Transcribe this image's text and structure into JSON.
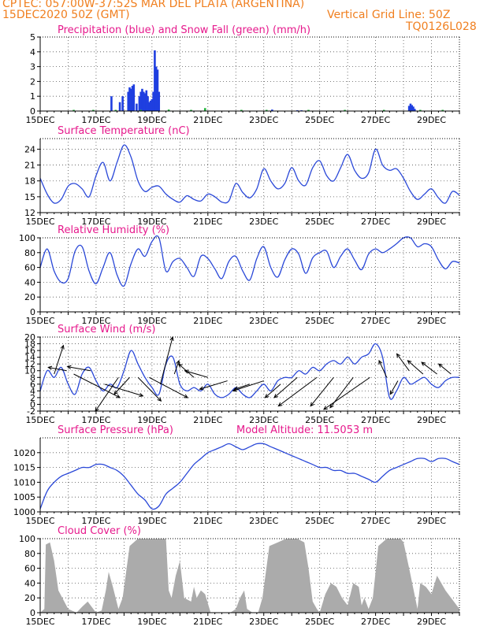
{
  "header": {
    "line1_left": "CPTEC:  057:00W-37:52S  MAR DEL PLATA (ARGENTINA)",
    "line2_left": "15DEC2020 50Z (GMT)",
    "line2_right": "Vertical Grid Line: 50Z",
    "line3_right": "TQ0126L028",
    "orange": "#f07f1f",
    "pink": "#e6198c"
  },
  "colors": {
    "precip": "#1f3fe0",
    "snow": "#21b33b",
    "line": "#2a48d8",
    "cloud": "#ababab",
    "arrow": "#000000"
  },
  "chart_data": [
    {
      "id": "precip",
      "type": "bar",
      "title": "Precipitation (blue) and Snow Fall (green) (mm/h)",
      "ylim": [
        0,
        5
      ],
      "yticks": [
        0,
        1,
        2,
        3,
        4,
        5
      ],
      "xlim": [
        15,
        30
      ],
      "xticks": [
        "15DEC",
        "17DEC",
        "19DEC",
        "21DEC",
        "23DEC",
        "25DEC",
        "27DEC",
        "29DEC"
      ],
      "series": [
        {
          "name": "Precipitation",
          "x": [
            17.55,
            17.85,
            17.95,
            18.15,
            18.2,
            18.25,
            18.3,
            18.35,
            18.45,
            18.55,
            18.6,
            18.65,
            18.7,
            18.75,
            18.8,
            18.85,
            18.9,
            18.95,
            19.0,
            19.05,
            19.1,
            19.15,
            19.2,
            19.25,
            23.3,
            24.2,
            24.35,
            28.2,
            28.25,
            28.3,
            28.35,
            28.4
          ],
          "values": [
            1.0,
            0.6,
            1.0,
            1.3,
            1.6,
            1.5,
            1.7,
            1.8,
            0.5,
            1.0,
            1.3,
            1.5,
            1.3,
            1.2,
            1.4,
            1.0,
            0.6,
            0.7,
            0.8,
            1.3,
            4.1,
            3.0,
            2.8,
            1.3,
            0.1,
            0.05,
            0.05,
            0.35,
            0.5,
            0.4,
            0.3,
            0.15
          ]
        },
        {
          "name": "Snow Fall",
          "x": [
            16.2,
            16.9,
            17.7,
            18.6,
            19.6,
            20.4,
            20.9,
            22.2,
            23.1,
            24.6,
            25.9,
            27.3,
            28.6,
            29.4
          ],
          "values": [
            0.05,
            0.05,
            0.05,
            0.05,
            0.1,
            0.05,
            0.2,
            0.05,
            0.05,
            0.05,
            0.05,
            0.05,
            0.05,
            0.05
          ]
        }
      ]
    },
    {
      "id": "temp",
      "type": "line",
      "title": "Surface Temperature (nC)",
      "ylim": [
        12,
        26
      ],
      "yticks": [
        12,
        15,
        18,
        21,
        24
      ],
      "xlim": [
        15,
        30
      ],
      "xticks": [
        "15DEC",
        "17DEC",
        "19DEC",
        "21DEC",
        "23DEC",
        "25DEC",
        "27DEC",
        "29DEC"
      ],
      "series": [
        {
          "name": "",
          "x": [
            15.0,
            15.25,
            15.5,
            15.75,
            16.0,
            16.25,
            16.5,
            16.75,
            17.0,
            17.25,
            17.5,
            17.75,
            18.0,
            18.25,
            18.5,
            18.75,
            19.0,
            19.25,
            19.5,
            19.75,
            20.0,
            20.25,
            20.5,
            20.75,
            21.0,
            21.25,
            21.5,
            21.75,
            22.0,
            22.25,
            22.5,
            22.75,
            23.0,
            23.25,
            23.5,
            23.75,
            24.0,
            24.25,
            24.5,
            24.75,
            25.0,
            25.25,
            25.5,
            25.75,
            26.0,
            26.25,
            26.5,
            26.75,
            27.0,
            27.25,
            27.5,
            27.75,
            28.0,
            28.25,
            28.5,
            28.75,
            29.0,
            29.25,
            29.5,
            29.75,
            30.0
          ],
          "values": [
            18.5,
            15.5,
            13.8,
            14.5,
            17.0,
            17.5,
            16.5,
            15.0,
            19.0,
            21.5,
            18.0,
            21.5,
            24.8,
            22.5,
            18.0,
            16.0,
            16.8,
            17.0,
            15.5,
            14.5,
            14.0,
            15.2,
            14.5,
            14.2,
            15.5,
            15.0,
            14.0,
            14.2,
            17.5,
            15.8,
            14.8,
            16.5,
            20.3,
            18.0,
            16.5,
            17.5,
            20.5,
            18.0,
            17.2,
            20.5,
            21.8,
            19.0,
            18.0,
            20.5,
            23.0,
            20.0,
            18.5,
            19.5,
            24.0,
            21.0,
            20.0,
            20.3,
            18.5,
            16.0,
            14.5,
            15.5,
            16.5,
            14.8,
            13.8,
            16.0,
            15.3
          ]
        }
      ]
    },
    {
      "id": "rh",
      "type": "line",
      "title": "Relative Humidity (%)",
      "ylim": [
        0,
        100
      ],
      "yticks": [
        0,
        20,
        40,
        60,
        80,
        100
      ],
      "xlim": [
        15,
        30
      ],
      "xticks": [
        "15DEC",
        "17DEC",
        "19DEC",
        "21DEC",
        "23DEC",
        "25DEC",
        "27DEC",
        "29DEC"
      ],
      "series": [
        {
          "name": "",
          "x": [
            15.0,
            15.25,
            15.5,
            15.75,
            16.0,
            16.25,
            16.5,
            16.75,
            17.0,
            17.25,
            17.5,
            17.75,
            18.0,
            18.25,
            18.5,
            18.75,
            19.0,
            19.25,
            19.5,
            19.75,
            20.0,
            20.25,
            20.5,
            20.75,
            21.0,
            21.25,
            21.5,
            21.75,
            22.0,
            22.25,
            22.5,
            22.75,
            23.0,
            23.25,
            23.5,
            23.75,
            24.0,
            24.25,
            24.5,
            24.75,
            25.0,
            25.25,
            25.5,
            25.75,
            26.0,
            26.25,
            26.5,
            26.75,
            27.0,
            27.25,
            27.5,
            27.75,
            28.0,
            28.25,
            28.5,
            28.75,
            29.0,
            29.25,
            29.5,
            29.75,
            30.0
          ],
          "values": [
            60,
            85,
            55,
            40,
            45,
            82,
            88,
            55,
            38,
            60,
            80,
            50,
            35,
            65,
            85,
            75,
            95,
            100,
            55,
            68,
            72,
            60,
            48,
            75,
            72,
            58,
            45,
            68,
            75,
            55,
            43,
            72,
            88,
            60,
            47,
            70,
            85,
            78,
            52,
            73,
            80,
            82,
            60,
            75,
            85,
            70,
            57,
            78,
            85,
            80,
            85,
            92,
            100,
            100,
            88,
            92,
            88,
            70,
            58,
            68,
            66
          ]
        }
      ]
    },
    {
      "id": "wind",
      "type": "line",
      "title": "Surface Wind (m/s)",
      "ylim": [
        -2,
        20
      ],
      "yticks": [
        -2,
        0,
        2,
        4,
        6,
        8,
        10,
        12,
        14,
        16,
        18,
        20
      ],
      "xlim": [
        15,
        30
      ],
      "xticks": [
        "15DEC",
        "17DEC",
        "19DEC",
        "21DEC",
        "23DEC",
        "25DEC",
        "27DEC",
        "29DEC"
      ],
      "series": [
        {
          "name": "",
          "x": [
            15.0,
            15.25,
            15.5,
            15.75,
            16.0,
            16.25,
            16.5,
            16.75,
            17.0,
            17.25,
            17.5,
            17.75,
            18.0,
            18.25,
            18.5,
            18.75,
            19.0,
            19.25,
            19.5,
            19.75,
            20.0,
            20.25,
            20.5,
            20.75,
            21.0,
            21.25,
            21.5,
            21.75,
            22.0,
            22.25,
            22.5,
            22.75,
            23.0,
            23.25,
            23.5,
            23.75,
            24.0,
            24.25,
            24.5,
            24.75,
            25.0,
            25.25,
            25.5,
            25.75,
            26.0,
            26.25,
            26.5,
            26.75,
            27.0,
            27.25,
            27.5,
            27.75,
            28.0,
            28.25,
            28.5,
            28.75,
            29.0,
            29.25,
            29.5,
            29.75,
            30.0
          ],
          "values": [
            4,
            10,
            8,
            11,
            6,
            3,
            9,
            11,
            7,
            4,
            6,
            5,
            10,
            16,
            12,
            8,
            5,
            3,
            12,
            14,
            6,
            4,
            5,
            4,
            6,
            3,
            2,
            3,
            5,
            3,
            2,
            4,
            6,
            4,
            7,
            8,
            8,
            10,
            9,
            11,
            10,
            12,
            13,
            12,
            14,
            12,
            14,
            15,
            18,
            14,
            2,
            4,
            8,
            6,
            7,
            8,
            6,
            5,
            7,
            8,
            8
          ]
        }
      ],
      "arrows": [
        {
          "x": 15.5,
          "y": 9,
          "u": 0.6,
          "v": 8.5
        },
        {
          "x": 15.95,
          "y": 10,
          "u": -1.2,
          "v": 1.0
        },
        {
          "x": 16.2,
          "y": 9,
          "u": 3.0,
          "v": -7.0
        },
        {
          "x": 16.8,
          "y": 10,
          "u": -1.5,
          "v": 1.2
        },
        {
          "x": 17.3,
          "y": 6,
          "u": 2.5,
          "v": -3.5
        },
        {
          "x": 17.8,
          "y": 8,
          "u": -1.5,
          "v": -10.0
        },
        {
          "x": 18.2,
          "y": 8,
          "u": -1.0,
          "v": -5.0
        },
        {
          "x": 18.5,
          "y": 8,
          "u": 1.5,
          "v": -7.0
        },
        {
          "x": 18.9,
          "y": 8,
          "u": 2.5,
          "v": -6.0
        },
        {
          "x": 19.3,
          "y": 6,
          "u": 0.8,
          "v": 14.0
        },
        {
          "x": 19.8,
          "y": 9,
          "u": 0.3,
          "v": 4.0
        },
        {
          "x": 20.5,
          "y": 8,
          "u": -1.0,
          "v": 4.0
        },
        {
          "x": 21.0,
          "y": 8,
          "u": -1.5,
          "v": 2.0
        },
        {
          "x": 21.7,
          "y": 7,
          "u": -1.8,
          "v": -2.5
        },
        {
          "x": 22.5,
          "y": 6,
          "u": -1.0,
          "v": -1.5
        },
        {
          "x": 23.0,
          "y": 7,
          "u": -2.0,
          "v": -3.0
        },
        {
          "x": 23.6,
          "y": 6,
          "u": -1.0,
          "v": -4.0
        },
        {
          "x": 24.2,
          "y": 8,
          "u": -1.5,
          "v": -6.0
        },
        {
          "x": 24.9,
          "y": 8,
          "u": -2.5,
          "v": -8.5
        },
        {
          "x": 25.5,
          "y": 8,
          "u": -1.5,
          "v": -8.5
        },
        {
          "x": 26.2,
          "y": 8,
          "u": -1.5,
          "v": -9.0
        },
        {
          "x": 26.8,
          "y": 8,
          "u": -3.0,
          "v": -9.5
        },
        {
          "x": 27.4,
          "y": 8,
          "u": -0.5,
          "v": 5.0
        },
        {
          "x": 27.8,
          "y": 7,
          "u": -0.5,
          "v": -4.0
        },
        {
          "x": 28.2,
          "y": 10,
          "u": -0.8,
          "v": 5.0
        },
        {
          "x": 28.7,
          "y": 9,
          "u": -1.0,
          "v": 4.0
        },
        {
          "x": 29.2,
          "y": 9,
          "u": -1.0,
          "v": 3.5
        },
        {
          "x": 29.7,
          "y": 9,
          "u": -0.8,
          "v": 3.0
        }
      ]
    },
    {
      "id": "pressure",
      "type": "line",
      "title": "Surface Pressure (hPa)",
      "annotation": "Model Altitude: 11.5053 m",
      "ylim": [
        1000,
        1025
      ],
      "yticks": [
        1000,
        1005,
        1010,
        1015,
        1020
      ],
      "xlim": [
        15,
        30
      ],
      "xticks": [
        "15DEC",
        "17DEC",
        "19DEC",
        "21DEC",
        "23DEC",
        "25DEC",
        "27DEC",
        "29DEC"
      ],
      "series": [
        {
          "name": "",
          "x": [
            15.0,
            15.25,
            15.5,
            15.75,
            16.0,
            16.25,
            16.5,
            16.75,
            17.0,
            17.25,
            17.5,
            17.75,
            18.0,
            18.25,
            18.5,
            18.75,
            19.0,
            19.25,
            19.5,
            19.75,
            20.0,
            20.25,
            20.5,
            20.75,
            21.0,
            21.25,
            21.5,
            21.75,
            22.0,
            22.25,
            22.5,
            22.75,
            23.0,
            23.25,
            23.5,
            23.75,
            24.0,
            24.25,
            24.5,
            24.75,
            25.0,
            25.25,
            25.5,
            25.75,
            26.0,
            26.25,
            26.5,
            26.75,
            27.0,
            27.25,
            27.5,
            27.75,
            28.0,
            28.25,
            28.5,
            28.75,
            29.0,
            29.25,
            29.5,
            29.75,
            30.0
          ],
          "values": [
            1001,
            1007,
            1010,
            1012,
            1013,
            1014,
            1015,
            1015,
            1016,
            1016,
            1015,
            1014,
            1012,
            1009,
            1006,
            1004,
            1001,
            1002,
            1006,
            1008,
            1010,
            1013,
            1016,
            1018,
            1020,
            1021,
            1022,
            1023,
            1022,
            1021,
            1022,
            1023,
            1023,
            1022,
            1021,
            1020,
            1019,
            1018,
            1017,
            1016,
            1015,
            1015,
            1014,
            1014,
            1013,
            1013,
            1012,
            1011,
            1010,
            1012,
            1014,
            1015,
            1016,
            1017,
            1018,
            1018,
            1017,
            1018,
            1018,
            1017,
            1016
          ]
        }
      ]
    },
    {
      "id": "cloud",
      "type": "area",
      "title": "Cloud Cover (%)",
      "ylim": [
        0,
        100
      ],
      "yticks": [
        0,
        20,
        40,
        60,
        80,
        100
      ],
      "xlim": [
        15,
        30
      ],
      "xticks": [
        "15DEC",
        "17DEC",
        "19DEC",
        "21DEC",
        "23DEC",
        "25DEC",
        "27DEC",
        "29DEC"
      ],
      "series": [
        {
          "name": "",
          "x": [
            15.0,
            15.15,
            15.2,
            15.35,
            15.5,
            15.65,
            16.0,
            16.3,
            16.5,
            16.7,
            17.0,
            17.2,
            17.35,
            17.45,
            17.6,
            17.8,
            17.95,
            18.2,
            18.5,
            18.8,
            19.0,
            19.2,
            19.5,
            19.6,
            19.7,
            19.85,
            20.0,
            20.15,
            20.4,
            20.5,
            20.6,
            20.75,
            20.9,
            21.1,
            21.4,
            21.6,
            21.8,
            22.0,
            22.15,
            22.3,
            22.4,
            22.6,
            22.8,
            22.95,
            23.2,
            23.5,
            23.8,
            24.0,
            24.2,
            24.45,
            24.6,
            24.75,
            24.9,
            25.0,
            25.2,
            25.4,
            25.6,
            25.8,
            26.0,
            26.1,
            26.2,
            26.4,
            26.5,
            26.6,
            26.75,
            26.9,
            27.1,
            27.4,
            27.7,
            27.9,
            28.0,
            28.2,
            28.5,
            28.6,
            28.8,
            29.0,
            29.2,
            29.5,
            29.8,
            30.0
          ],
          "values": [
            0,
            5,
            92,
            95,
            70,
            30,
            5,
            0,
            8,
            15,
            0,
            3,
            30,
            55,
            35,
            5,
            20,
            90,
            100,
            100,
            100,
            100,
            100,
            30,
            20,
            50,
            70,
            20,
            15,
            35,
            20,
            30,
            25,
            0,
            0,
            0,
            0,
            5,
            20,
            30,
            5,
            0,
            0,
            20,
            90,
            95,
            100,
            100,
            100,
            95,
            60,
            15,
            5,
            0,
            25,
            40,
            35,
            20,
            10,
            25,
            40,
            35,
            10,
            20,
            5,
            20,
            90,
            100,
            100,
            100,
            95,
            60,
            5,
            40,
            35,
            25,
            50,
            30,
            15,
            5
          ]
        }
      ]
    }
  ]
}
